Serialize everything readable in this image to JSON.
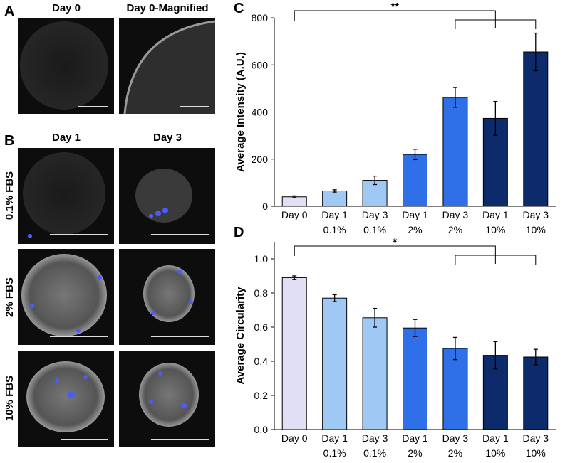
{
  "panels": {
    "A": {
      "label": "A",
      "titles": [
        "Day 0",
        "Day 0-Magnified"
      ]
    },
    "B": {
      "label": "B",
      "columns": [
        "Day 1",
        "Day 3"
      ],
      "rows": [
        "0.1% FBS",
        "2% FBS",
        "10% FBS"
      ]
    }
  },
  "chart_data": [
    {
      "type": "bar",
      "panel_label": "C",
      "ylabel": "Average Intensity (A.U.)",
      "categories": [
        [
          "Day 0"
        ],
        [
          "Day 1",
          "0.1%"
        ],
        [
          "Day 3",
          "0.1%"
        ],
        [
          "Day 1",
          "2%"
        ],
        [
          "Day 3",
          "2%"
        ],
        [
          "Day 1",
          "10%"
        ],
        [
          "Day 3",
          "10%"
        ]
      ],
      "values": [
        40,
        65,
        110,
        220,
        462,
        373,
        655
      ],
      "errors": [
        4,
        5,
        18,
        22,
        42,
        72,
        80
      ],
      "colors": [
        "#e0dff5",
        "#9fc8f5",
        "#9fc8f5",
        "#2f6fe8",
        "#2f6fe8",
        "#0d2a6b",
        "#0d2a6b"
      ],
      "ylim": [
        0,
        800
      ],
      "yticks": [
        0,
        200,
        400,
        600,
        800
      ],
      "annotation": "**"
    },
    {
      "type": "bar",
      "panel_label": "D",
      "ylabel": "Average Circularity",
      "categories": [
        [
          "Day 0"
        ],
        [
          "Day 1",
          "0.1%"
        ],
        [
          "Day 3",
          "0.1%"
        ],
        [
          "Day 1",
          "2%"
        ],
        [
          "Day 3",
          "2%"
        ],
        [
          "Day 1",
          "10%"
        ],
        [
          "Day 3",
          "10%"
        ]
      ],
      "values": [
        0.89,
        0.77,
        0.655,
        0.595,
        0.475,
        0.435,
        0.425
      ],
      "errors": [
        0.01,
        0.02,
        0.055,
        0.05,
        0.065,
        0.08,
        0.045
      ],
      "colors": [
        "#e0dff5",
        "#9fc8f5",
        "#9fc8f5",
        "#2f6fe8",
        "#2f6fe8",
        "#0d2a6b",
        "#0d2a6b"
      ],
      "ylim": [
        0,
        1.1
      ],
      "yticks": [
        {
          "value": 0,
          "label": "0.0"
        },
        0.2,
        0.4,
        0.6,
        0.8,
        {
          "value": 1,
          "label": "1.0"
        }
      ],
      "annotation": "*"
    }
  ]
}
